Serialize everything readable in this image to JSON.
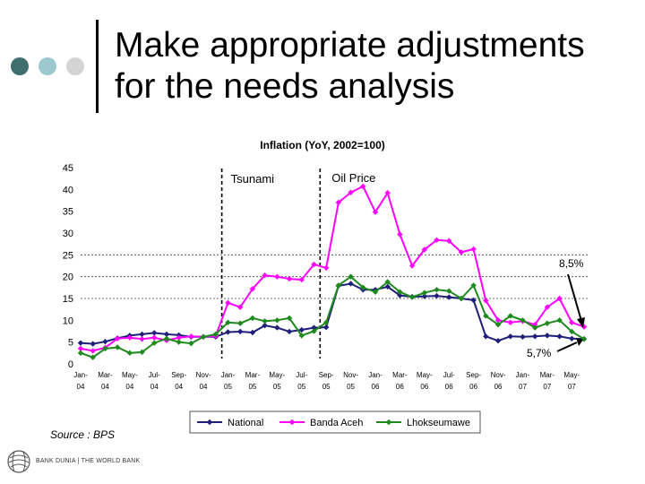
{
  "slide": {
    "title_line1": "Make appropriate adjustments",
    "title_line2": "for the needs analysis",
    "source": "Source : BPS",
    "logo_text": "BANK DUNIA | THE WORLD BANK",
    "dot_colors": [
      "#3f6e6e",
      "#9cc9d0",
      "#d4d4d4"
    ]
  },
  "chart_data": {
    "type": "line",
    "title": "Inflation (YoY, 2002=100)",
    "ylim": [
      0,
      45
    ],
    "yticks": [
      0,
      5,
      10,
      15,
      20,
      25,
      30,
      35,
      40,
      45
    ],
    "tick_labels": [
      [
        "Jan-",
        "04"
      ],
      [
        "Mar-",
        "04"
      ],
      [
        "May-",
        "04"
      ],
      [
        "Jul-",
        "04"
      ],
      [
        "Sep-",
        "04"
      ],
      [
        "Nov-",
        "04"
      ],
      [
        "Jan-",
        "05"
      ],
      [
        "Mar-",
        "05"
      ],
      [
        "May-",
        "05"
      ],
      [
        "Jul-",
        "05"
      ],
      [
        "Sep-",
        "05"
      ],
      [
        "Nov-",
        "05"
      ],
      [
        "Jan-",
        "06"
      ],
      [
        "Mar-",
        "06"
      ],
      [
        "May-",
        "06"
      ],
      [
        "Jul-",
        "06"
      ],
      [
        "Sep-",
        "06"
      ],
      [
        "Nov-",
        "06"
      ],
      [
        "Jan-",
        "07"
      ],
      [
        "Mar-",
        "07"
      ],
      [
        "May-",
        "07"
      ]
    ],
    "grid_lines": [
      15,
      20,
      25
    ],
    "series": [
      {
        "name": "National",
        "color": "#1f1f7a",
        "marker": "diamond",
        "values": [
          4.8,
          4.6,
          5.1,
          5.9,
          6.5,
          6.8,
          7.1,
          6.8,
          6.6,
          6.2,
          6.2,
          6.2,
          7.3,
          7.4,
          7.2,
          8.8,
          8.3,
          7.4,
          7.8,
          8.3,
          8.4,
          17.9,
          18.4,
          17.0,
          17.0,
          17.7,
          15.7,
          15.4,
          15.5,
          15.6,
          15.3,
          15.0,
          14.6,
          6.3,
          5.3,
          6.3,
          6.2,
          6.3,
          6.5,
          6.3,
          5.8,
          5.7
        ]
      },
      {
        "name": "Banda Aceh",
        "color": "#ff00ff",
        "marker": "diamond",
        "values": [
          3.5,
          3.0,
          3.7,
          5.8,
          6.0,
          5.7,
          6.0,
          5.4,
          6.0,
          6.3,
          6.2,
          6.4,
          14.0,
          13.0,
          17.2,
          20.3,
          20.0,
          19.5,
          19.3,
          22.8,
          22.0,
          37.0,
          39.3,
          40.7,
          34.8,
          39.2,
          29.7,
          22.5,
          26.2,
          28.4,
          28.2,
          25.6,
          26.3,
          14.5,
          10.0,
          9.5,
          9.8,
          9.0,
          13.0,
          15.0,
          9.5,
          8.5
        ]
      },
      {
        "name": "Lhokseumawe",
        "color": "#1e8a1e",
        "marker": "diamond",
        "values": [
          2.5,
          1.5,
          3.5,
          3.8,
          2.5,
          2.7,
          4.8,
          5.8,
          5.0,
          4.7,
          6.2,
          6.8,
          9.5,
          9.3,
          10.5,
          9.8,
          10.0,
          10.5,
          6.5,
          7.5,
          9.5,
          18.0,
          20.0,
          17.5,
          16.5,
          18.8,
          16.5,
          15.3,
          16.3,
          17.0,
          16.7,
          15.0,
          18.0,
          11.0,
          9.0,
          11.0,
          10.0,
          8.3,
          9.3,
          10.0,
          7.4,
          5.7
        ]
      }
    ],
    "annotations": {
      "tsunami": {
        "label": "Tsunami",
        "at_index": 11.5
      },
      "oil_price": {
        "label": "Oil Price",
        "at_index": 19.5
      },
      "high_label": "8,5%",
      "low_label": "5,7%"
    }
  }
}
